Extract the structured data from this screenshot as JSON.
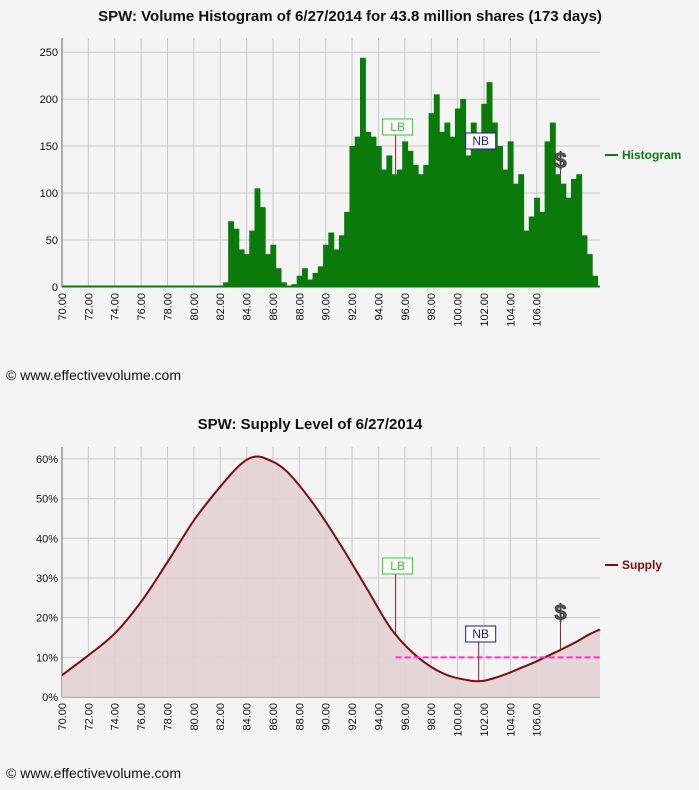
{
  "copyright": "© www.effectivevolume.com",
  "colors": {
    "histogram": "#0a7a0a",
    "supply": "#7a0e0e",
    "supply_fill": "#e3d1d3",
    "lb": "#2ecc2e",
    "nb": "#1a1a9a",
    "dashed_line": "#ff33cc",
    "grid": "#c8c8c8"
  },
  "charts": {
    "histogram": {
      "title": "SPW: Volume Histogram of 6/27/2014 for 43.8 million shares (173 days)",
      "legend": "Histogram",
      "annotations": {
        "lb": "LB",
        "nb": "NB",
        "dollar": "$"
      }
    },
    "supply": {
      "title": "SPW: Supply Level of 6/27/2014",
      "legend": "Supply",
      "annotations": {
        "lb": "LB",
        "nb": "NB",
        "dollar": "$"
      }
    }
  },
  "chart_data": [
    {
      "type": "bar",
      "title": "SPW: Volume Histogram of 6/27/2014 for 43.8 million shares (173 days)",
      "x_ticks": [
        "70.00",
        "72.00",
        "74.00",
        "76.00",
        "78.00",
        "80.00",
        "82.00",
        "84.00",
        "86.00",
        "88.00",
        "90.00",
        "92.00",
        "94.00",
        "96.00",
        "98.00",
        "100.00",
        "102.00",
        "104.00",
        "106.00"
      ],
      "y_ticks": [
        "0",
        "50",
        "100",
        "150",
        "200",
        "250"
      ],
      "xlim": [
        70,
        110.8
      ],
      "ylim": [
        0,
        265
      ],
      "grid": true,
      "legend_position": "right",
      "series": [
        {
          "name": "Histogram",
          "x": [
            82.4,
            82.8,
            83.2,
            83.6,
            84.0,
            84.4,
            84.8,
            85.2,
            85.6,
            86.0,
            86.4,
            86.8,
            87.6,
            88.0,
            88.4,
            88.8,
            89.2,
            89.6,
            90.0,
            90.4,
            90.8,
            91.2,
            91.6,
            92.0,
            92.4,
            92.8,
            93.2,
            93.6,
            94.0,
            94.4,
            94.8,
            95.2,
            95.6,
            96.0,
            96.4,
            96.8,
            97.2,
            97.6,
            98.0,
            98.4,
            98.8,
            99.2,
            99.6,
            100.0,
            100.4,
            100.8,
            101.2,
            101.6,
            102.0,
            102.4,
            102.8,
            103.2,
            103.6,
            104.0,
            104.4,
            104.8,
            105.2,
            105.6,
            106.0,
            106.4,
            106.8,
            107.2,
            107.6,
            108.0,
            108.4,
            108.8,
            109.2,
            109.6,
            110.0,
            110.4
          ],
          "values": [
            5,
            70,
            62,
            40,
            35,
            60,
            105,
            85,
            35,
            45,
            20,
            5,
            3,
            12,
            20,
            8,
            15,
            22,
            45,
            58,
            40,
            55,
            80,
            150,
            160,
            244,
            165,
            160,
            150,
            125,
            140,
            120,
            125,
            155,
            145,
            130,
            120,
            130,
            185,
            205,
            165,
            175,
            160,
            190,
            200,
            140,
            175,
            150,
            195,
            218,
            175,
            150,
            125,
            155,
            110,
            120,
            60,
            75,
            95,
            80,
            155,
            175,
            120,
            110,
            95,
            115,
            120,
            55,
            35,
            12
          ]
        }
      ],
      "annotations": [
        {
          "label": "LB",
          "x": 95.3
        },
        {
          "label": "NB",
          "x": 101.6
        },
        {
          "label": "$",
          "x": 107.8
        }
      ]
    },
    {
      "type": "area",
      "title": "SPW: Supply Level of 6/27/2014",
      "x_ticks": [
        "70.00",
        "72.00",
        "74.00",
        "76.00",
        "78.00",
        "80.00",
        "82.00",
        "84.00",
        "86.00",
        "88.00",
        "90.00",
        "92.00",
        "94.00",
        "96.00",
        "98.00",
        "100.00",
        "102.00",
        "104.00",
        "106.00"
      ],
      "y_ticks": [
        "0%",
        "10%",
        "20%",
        "30%",
        "40%",
        "50%",
        "60%"
      ],
      "xlim": [
        70,
        110.8
      ],
      "ylim": [
        0,
        63
      ],
      "grid": true,
      "legend_position": "right",
      "series": [
        {
          "name": "Supply",
          "x": [
            70,
            72,
            74,
            76,
            78,
            80,
            82,
            83.5,
            84.5,
            85.5,
            87,
            89,
            91,
            93,
            95,
            97,
            99,
            101,
            102,
            103,
            104,
            105,
            106,
            107,
            108,
            109,
            110,
            110.8
          ],
          "values": [
            5.5,
            10.5,
            16,
            24,
            34,
            44.5,
            53,
            58.5,
            60.5,
            60,
            57,
            49,
            39,
            28,
            17,
            10,
            5.8,
            4.1,
            4.1,
            5,
            6.2,
            7.6,
            9,
            10.6,
            12.2,
            13.9,
            15.8,
            17
          ]
        }
      ],
      "reference_line": {
        "y": 10,
        "x_start": 95.3,
        "x_end": 110.8,
        "style": "dashed"
      },
      "annotations": [
        {
          "label": "LB",
          "x": 95.3
        },
        {
          "label": "NB",
          "x": 101.6
        },
        {
          "label": "$",
          "x": 107.8
        }
      ]
    }
  ]
}
